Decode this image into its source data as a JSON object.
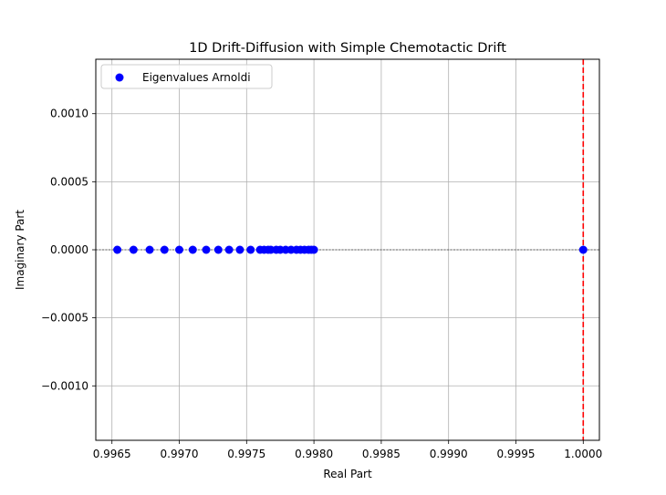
{
  "chart_data": {
    "type": "scatter",
    "title": "1D Drift-Diffusion with Simple Chemotactic Drift",
    "xlabel": "Real Part",
    "ylabel": "Imaginary Part",
    "xlim": [
      0.99638,
      1.00012
    ],
    "ylim": [
      -0.0014,
      0.0014
    ],
    "grid": true,
    "legend": {
      "position": "top-left",
      "entries": [
        "Eigenvalues Arnoldi"
      ]
    },
    "x_ticks": [
      0.9965,
      0.997,
      0.9975,
      0.998,
      0.9985,
      0.999,
      0.9995,
      1.0
    ],
    "x_tick_labels": [
      "0.9965",
      "0.9970",
      "0.9975",
      "0.9980",
      "0.9985",
      "0.9990",
      "0.9995",
      "1.0000"
    ],
    "y_ticks": [
      0.001,
      0.0005,
      0.0,
      -0.0005,
      -0.001
    ],
    "y_tick_labels": [
      "0.0010",
      "0.0005",
      "0.0000",
      "−0.0005",
      "−0.0010"
    ],
    "reference_lines": [
      {
        "orientation": "horizontal",
        "value": 0.0,
        "color": "#000000",
        "style": "dashed"
      },
      {
        "orientation": "vertical",
        "value": 1.0,
        "color": "#ff0000",
        "style": "dashed"
      }
    ],
    "series": [
      {
        "name": "Eigenvalues Arnoldi",
        "color": "#0000ff",
        "x": [
          0.99654,
          0.99666,
          0.99678,
          0.99689,
          0.997,
          0.9971,
          0.9972,
          0.99729,
          0.99737,
          0.99745,
          0.99753,
          0.9976,
          0.99763,
          0.99766,
          0.99768,
          0.99772,
          0.99775,
          0.99779,
          0.99783,
          0.99787,
          0.9979,
          0.99793,
          0.99796,
          0.99798,
          0.998,
          1.0
        ],
        "y": [
          0,
          0,
          0,
          0,
          0,
          0,
          0,
          0,
          0,
          0,
          0,
          0,
          0,
          0,
          0,
          0,
          0,
          0,
          0,
          0,
          0,
          0,
          0,
          0,
          0,
          0
        ]
      }
    ]
  }
}
